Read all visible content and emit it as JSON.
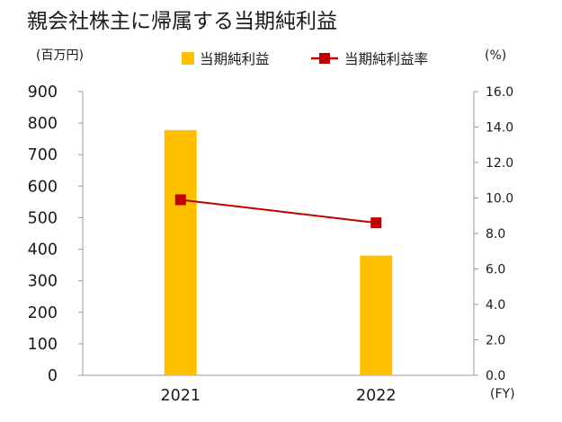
{
  "chart_data": {
    "title": "親会社株主に帰属する当期純利益",
    "type": "bar+line",
    "categories": [
      "2021",
      "2022"
    ],
    "series": [
      {
        "name": "当期純利益",
        "type": "bar",
        "axis": "left",
        "values": [
          778,
          380
        ],
        "color": "#FFC000"
      },
      {
        "name": "当期純利益率",
        "type": "line",
        "axis": "right",
        "values": [
          9.9,
          8.6
        ],
        "color": "#C00000"
      }
    ],
    "y_left": {
      "unit": "(百万円)",
      "range": [
        0,
        900
      ],
      "ticks": [
        "0",
        "100",
        "200",
        "300",
        "400",
        "500",
        "600",
        "700",
        "800",
        "900"
      ]
    },
    "y_right": {
      "unit": "(%)",
      "range": [
        0,
        16
      ],
      "ticks": [
        "0.0",
        "2.0",
        "4.0",
        "6.0",
        "8.0",
        "10.0",
        "12.0",
        "14.0",
        "16.0"
      ]
    },
    "x_unit": "(FY)",
    "legend_position": "top",
    "grid": false
  }
}
